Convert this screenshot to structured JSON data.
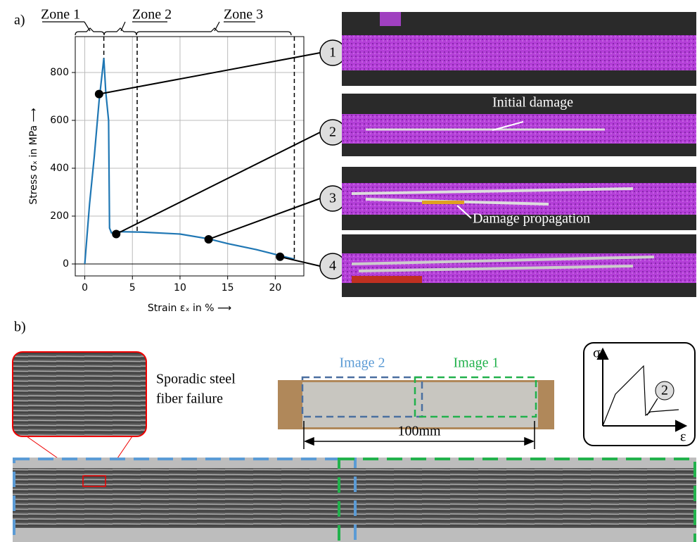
{
  "panel_labels": [
    "a)",
    "b)"
  ],
  "zones": [
    "Zone 1",
    "Zone 2",
    "Zone 3"
  ],
  "chart_data": {
    "type": "line",
    "x_label": "Strain εₓ in % ⟶",
    "y_label": "Stress σₓ in MPa ⟶",
    "x": [
      0,
      0.5,
      1,
      1.5,
      2,
      2.2,
      2.5,
      2.6,
      2.8,
      3.5,
      6,
      10,
      13,
      15,
      18,
      20.5,
      22
    ],
    "series": [
      {
        "color": "#1f77b4",
        "values": [
          0,
          250,
          450,
          680,
          860,
          720,
          600,
          150,
          130,
          135,
          133,
          125,
          105,
          85,
          60,
          35,
          20
        ]
      }
    ],
    "xlim": [
      -1,
      23
    ],
    "ylim": [
      -50,
      950
    ],
    "xticks": [
      0,
      5,
      10,
      15,
      20
    ],
    "yticks": [
      0,
      200,
      400,
      600,
      800
    ],
    "grid": true,
    "zone_bounds": [
      2,
      5.5,
      22
    ],
    "markers": {
      "x": [
        1.5,
        3.3,
        13,
        20.5
      ],
      "values": [
        710,
        125,
        103,
        30
      ],
      "labels": [
        "1",
        "2",
        "3",
        "4"
      ]
    }
  },
  "photo_annotations": [
    "Initial damage",
    "Damage propagation"
  ],
  "zoom_caption": [
    "Sporadic steel",
    "fiber failure"
  ],
  "image_labels": [
    "Image 2",
    "Image 1"
  ],
  "dimension": "100mm",
  "inset": {
    "y_symbol": "σ",
    "x_symbol": "ε",
    "marker": "2"
  }
}
